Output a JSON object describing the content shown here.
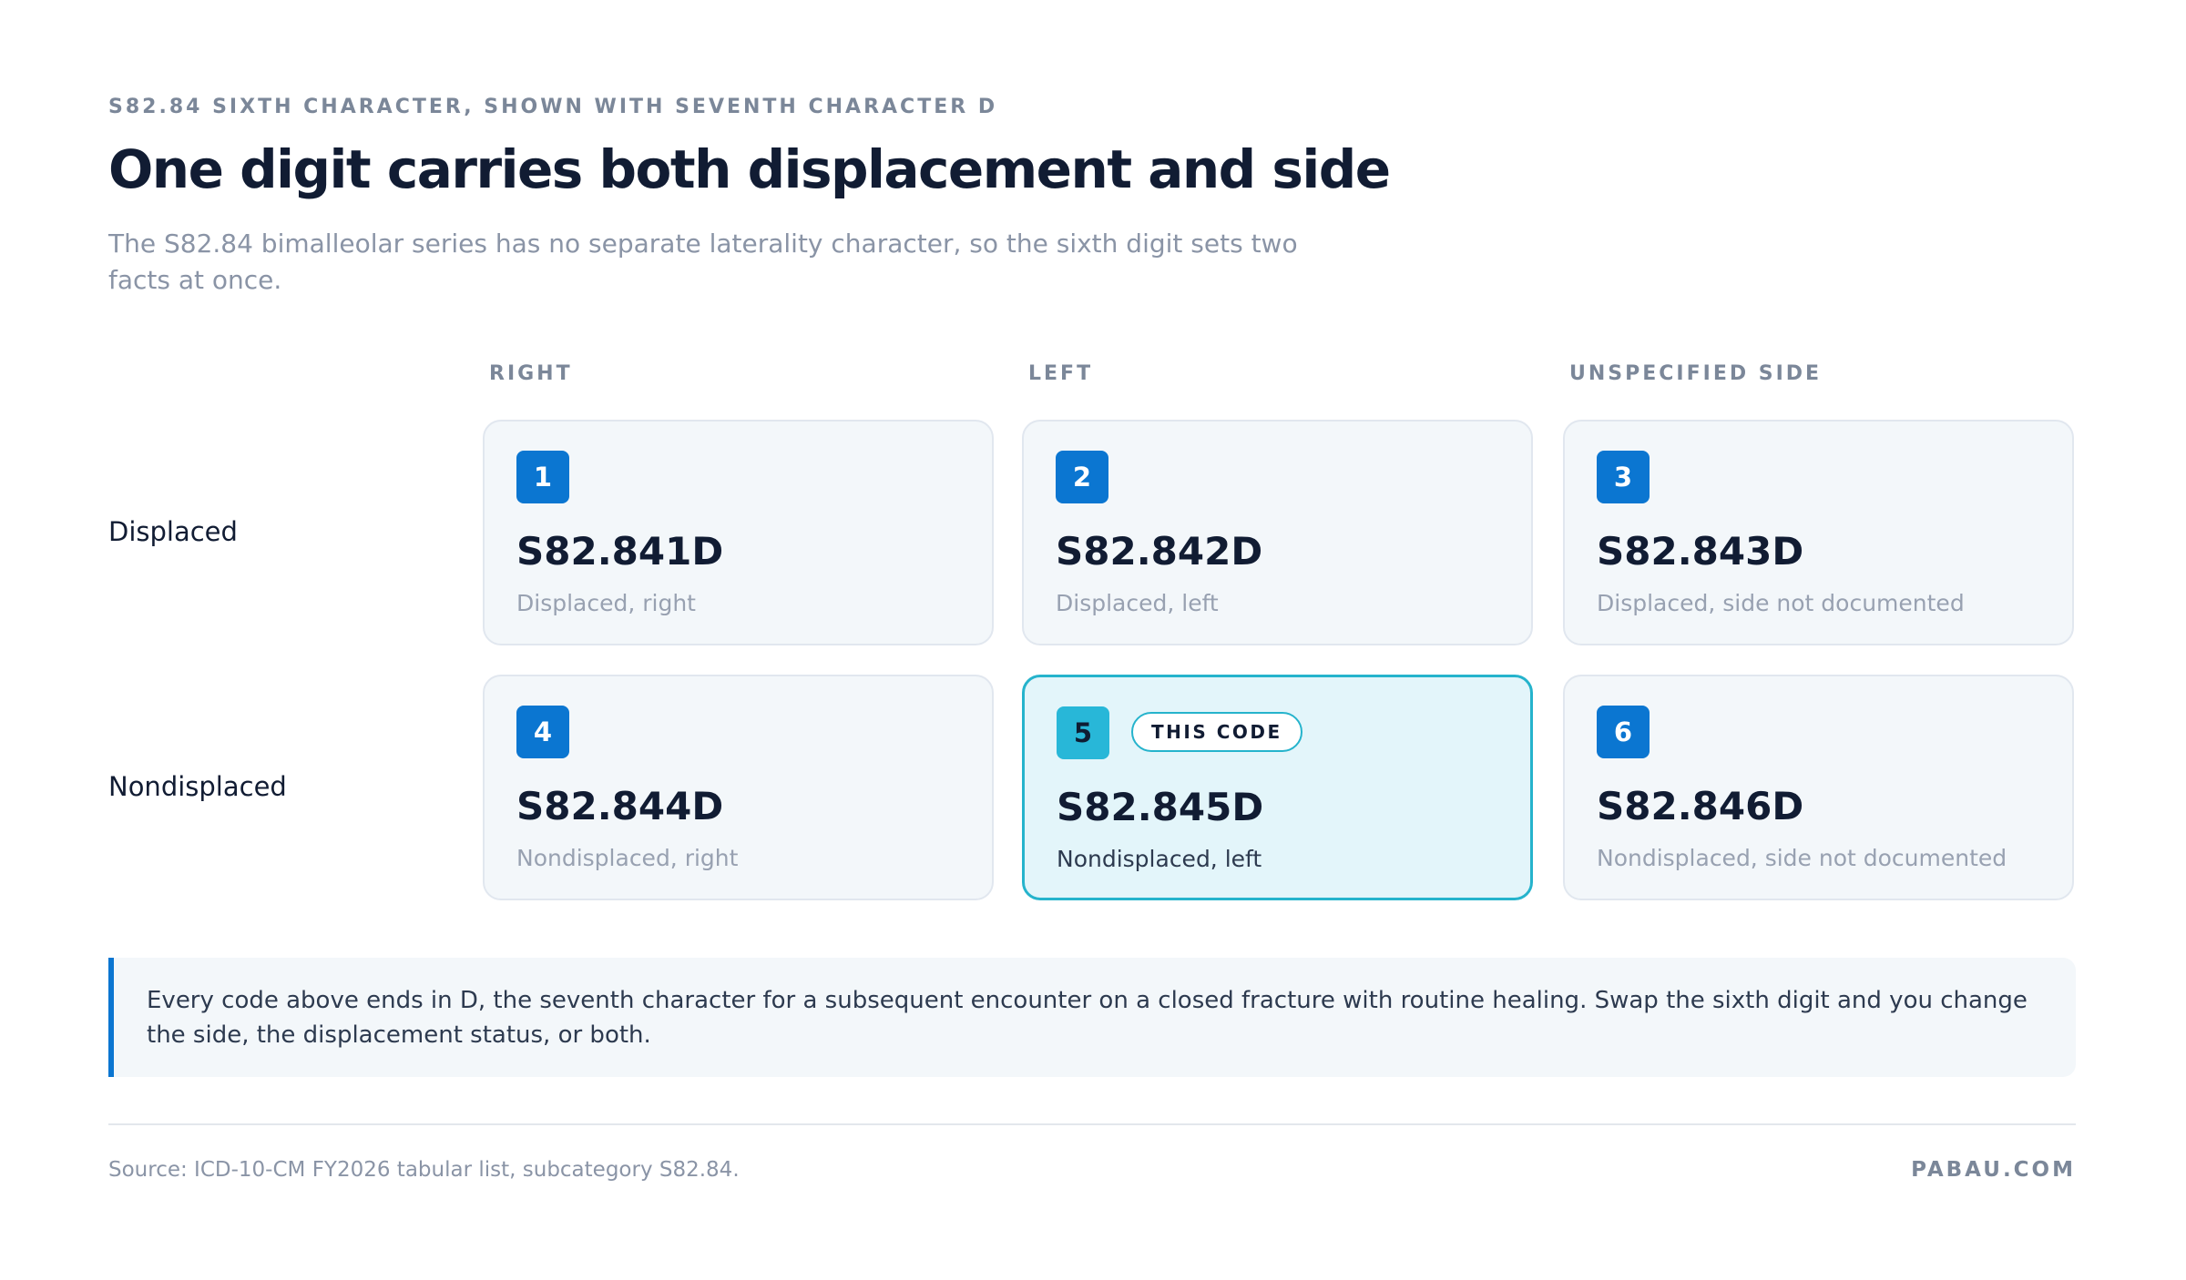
{
  "header": {
    "eyebrow": "S82.84 SIXTH CHARACTER, SHOWN WITH SEVENTH CHARACTER D",
    "title": "One digit carries both displacement and side",
    "subtitle": "The S82.84 bimalleolar series has no separate laterality character, so the sixth digit sets two facts at once."
  },
  "grid": {
    "columns": [
      "RIGHT",
      "LEFT",
      "UNSPECIFIED SIDE"
    ],
    "rows": [
      {
        "label": "Displaced",
        "cells": [
          {
            "digit": "1",
            "code": "S82.841D",
            "description": "Displaced, right"
          },
          {
            "digit": "2",
            "code": "S82.842D",
            "description": "Displaced, left"
          },
          {
            "digit": "3",
            "code": "S82.843D",
            "description": "Displaced, side not documented"
          }
        ]
      },
      {
        "label": "Nondisplaced",
        "cells": [
          {
            "digit": "4",
            "code": "S82.844D",
            "description": "Nondisplaced, right"
          },
          {
            "digit": "5",
            "tag": "THIS CODE",
            "code": "S82.845D",
            "description": "Nondisplaced, left"
          },
          {
            "digit": "6",
            "code": "S82.846D",
            "description": "Nondisplaced, side not documented"
          }
        ]
      }
    ]
  },
  "note": "Every code above ends in D, the seventh character for a subsequent encounter on a closed fracture with routine healing. Swap the sixth digit and you change the side, the displacement status, or both.",
  "footer": {
    "source": "Source: ICD-10-CM FY2026 tabular list, subcategory S82.84.",
    "brand": "PABAU.COM"
  }
}
